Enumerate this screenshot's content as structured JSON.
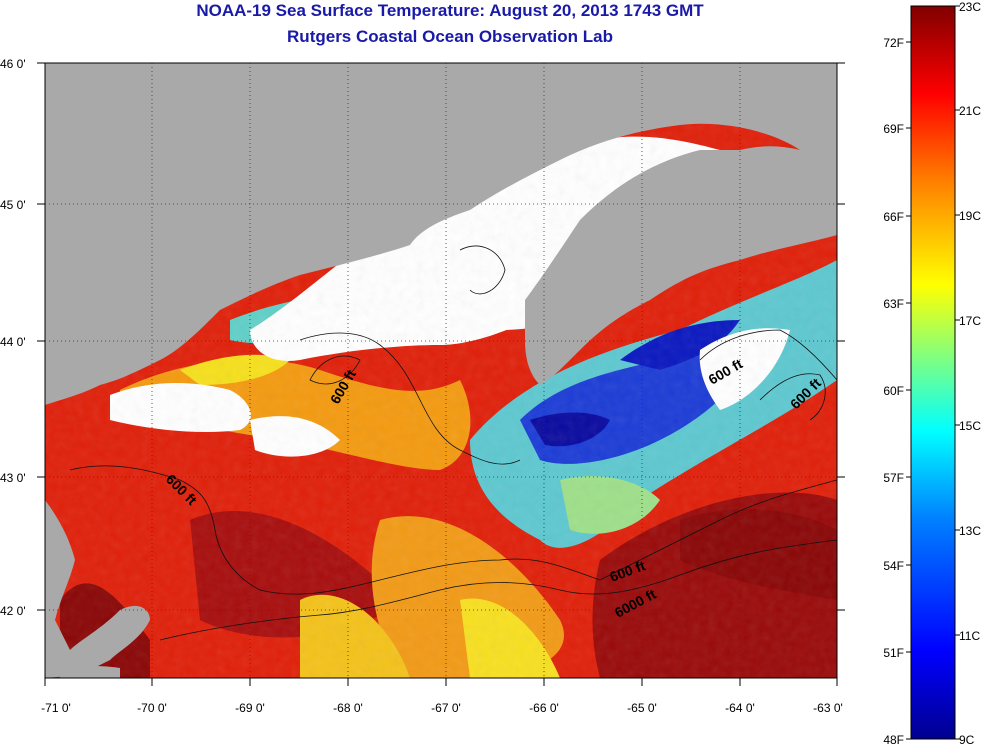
{
  "title": "NOAA-19 Sea Surface Temperature:  August 20, 2013 1743 GMT",
  "subtitle": "Rutgers Coastal Ocean Observation Lab",
  "lat_labels": [
    "46 0'",
    "45 0'",
    "44 0'",
    "43 0'",
    "42 0'"
  ],
  "lon_labels": [
    "-71 0'",
    "-70 0'",
    "-69 0'",
    "-68 0'",
    "-67 0'",
    "-66 0'",
    "-65 0'",
    "-64 0'",
    "-63 0'"
  ],
  "contour_labels": [
    "600 ft",
    "600 ft",
    "600 ft",
    "600 ft",
    "600 ft",
    "6000 ft"
  ],
  "colorbar": {
    "fahrenheit_labels": [
      "72F",
      "69F",
      "66F",
      "63F",
      "60F",
      "57F",
      "54F",
      "51F",
      "48F"
    ],
    "celsius_labels": [
      "23C",
      "21C",
      "19C",
      "17C",
      "15C",
      "13C",
      "11C",
      "9C"
    ],
    "colors": [
      "#00008f",
      "#0000ff",
      "#0080ff",
      "#00ffff",
      "#80ff80",
      "#ffff00",
      "#ff8000",
      "#ff0000",
      "#800000"
    ]
  },
  "colors": {
    "title": "#1a1aa8",
    "land": "#a9a9a9",
    "cloud": "#ffffff"
  }
}
